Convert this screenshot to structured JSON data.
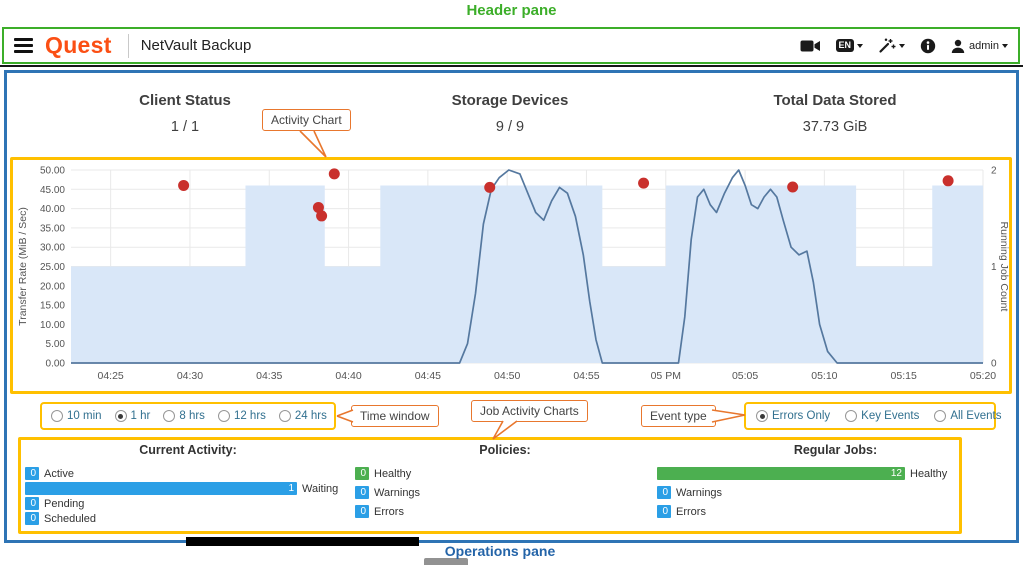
{
  "annotations": {
    "header_pane": "Header pane",
    "activity_chart": "Activity Chart",
    "time_window": "Time window",
    "job_activity_charts": "Job Activity Charts",
    "event_type": "Event type",
    "operations_pane": "Operations pane"
  },
  "colors": {
    "annotation_green": "#3cae29",
    "annotation_blue": "#2e74b5",
    "annotation_yellow": "#ffc000",
    "annotation_orange": "#e8772e",
    "brand_orange": "#fb4f14",
    "status_blue": "#2b9fe6",
    "status_green": "#4caf50"
  },
  "header": {
    "brand": "Quest",
    "app_title": "NetVault Backup",
    "language_badge": "EN",
    "user_label": "admin"
  },
  "stats": [
    {
      "title": "Client Status",
      "value": "1 / 1"
    },
    {
      "title": "Storage Devices",
      "value": "9 / 9"
    },
    {
      "title": "Total Data Stored",
      "value": "37.73 GiB"
    }
  ],
  "time_window": {
    "options": [
      {
        "label": "10 min",
        "selected": false
      },
      {
        "label": "1 hr",
        "selected": true
      },
      {
        "label": "8 hrs",
        "selected": false
      },
      {
        "label": "12 hrs",
        "selected": false
      },
      {
        "label": "24 hrs",
        "selected": false
      }
    ]
  },
  "event_type": {
    "options": [
      {
        "label": "Errors Only",
        "selected": true
      },
      {
        "label": "Key Events",
        "selected": false
      },
      {
        "label": "All Events",
        "selected": false
      }
    ]
  },
  "operations": {
    "columns": [
      {
        "title": "Current Activity:",
        "rows": [
          {
            "count": "0",
            "label": "Active",
            "color": "#2b9fe6"
          },
          {
            "count": "1",
            "label": "Waiting",
            "color": "#2b9fe6"
          },
          {
            "count": "0",
            "label": "Pending",
            "color": "#2b9fe6"
          },
          {
            "count": "0",
            "label": "Scheduled",
            "color": "#2b9fe6"
          }
        ]
      },
      {
        "title": "Policies:",
        "rows": [
          {
            "count": "0",
            "label": "Healthy",
            "color": "#4caf50"
          },
          {
            "count": "0",
            "label": "Warnings",
            "color": "#2b9fe6"
          },
          {
            "count": "0",
            "label": "Errors",
            "color": "#2b9fe6"
          }
        ]
      },
      {
        "title": "Regular Jobs:",
        "rows": [
          {
            "count": "12",
            "label": "Healthy",
            "color": "#4caf50"
          },
          {
            "count": "0",
            "label": "Warnings",
            "color": "#2b9fe6"
          },
          {
            "count": "0",
            "label": "Errors",
            "color": "#2b9fe6"
          }
        ]
      }
    ]
  },
  "chart_data": {
    "type": "line",
    "title": "Activity Chart",
    "grid": true,
    "legend": "none",
    "x_axis": {
      "unit": "minutes after 04:20 PM",
      "domain": [
        2.5,
        60
      ],
      "ticks": [
        {
          "x": 5,
          "label": "04:25"
        },
        {
          "x": 10,
          "label": "04:30"
        },
        {
          "x": 15,
          "label": "04:35"
        },
        {
          "x": 20,
          "label": "04:40"
        },
        {
          "x": 25,
          "label": "04:45"
        },
        {
          "x": 30,
          "label": "04:50"
        },
        {
          "x": 35,
          "label": "04:55"
        },
        {
          "x": 40,
          "label": "05 PM"
        },
        {
          "x": 45,
          "label": "05:05"
        },
        {
          "x": 50,
          "label": "05:10"
        },
        {
          "x": 55,
          "label": "05:15"
        },
        {
          "x": 60,
          "label": "05:20"
        }
      ]
    },
    "y_left": {
      "label": "Transfer Rate (MiB / Sec)",
      "min": 0,
      "max": 50,
      "tick_labels": [
        "50.00",
        "45.00",
        "40.00",
        "35.00",
        "30.00",
        "25.00",
        "20.00",
        "15.00",
        "10.00",
        "5.00",
        "0.00"
      ]
    },
    "y_right": {
      "label": "Running Job Count",
      "min": 0,
      "max": 2,
      "tick_labels": [
        "2",
        "1",
        "0"
      ]
    },
    "series": [
      {
        "name": "Running Job Count",
        "type": "step-area",
        "axis": "right",
        "points": [
          [
            2.5,
            1
          ],
          [
            13.5,
            2
          ],
          [
            18.5,
            1
          ],
          [
            22,
            2
          ],
          [
            36,
            1
          ],
          [
            40,
            2
          ],
          [
            52,
            1
          ],
          [
            56.8,
            2
          ]
        ]
      },
      {
        "name": "Transfer Rate",
        "type": "line",
        "axis": "left",
        "points": [
          [
            2.5,
            0
          ],
          [
            27,
            0
          ],
          [
            27.5,
            5
          ],
          [
            28,
            18
          ],
          [
            28.5,
            36
          ],
          [
            29,
            45
          ],
          [
            29.5,
            48
          ],
          [
            30.1,
            50
          ],
          [
            30.8,
            49
          ],
          [
            31.3,
            44
          ],
          [
            31.8,
            39
          ],
          [
            32.3,
            37
          ],
          [
            32.8,
            42
          ],
          [
            33.3,
            45.5
          ],
          [
            33.8,
            44
          ],
          [
            34.3,
            38
          ],
          [
            34.8,
            28
          ],
          [
            35.2,
            16
          ],
          [
            35.6,
            6
          ],
          [
            36,
            0
          ],
          [
            40.8,
            0
          ],
          [
            41.2,
            12
          ],
          [
            41.6,
            32
          ],
          [
            42,
            43
          ],
          [
            42.4,
            45
          ],
          [
            42.8,
            41
          ],
          [
            43.2,
            39
          ],
          [
            43.7,
            44
          ],
          [
            44.2,
            48
          ],
          [
            44.6,
            50
          ],
          [
            45,
            46
          ],
          [
            45.4,
            41
          ],
          [
            45.8,
            40
          ],
          [
            46.2,
            43
          ],
          [
            46.6,
            45
          ],
          [
            47,
            43
          ],
          [
            47.4,
            37
          ],
          [
            47.9,
            30
          ],
          [
            48.4,
            28
          ],
          [
            48.9,
            29
          ],
          [
            49.3,
            21
          ],
          [
            49.7,
            10
          ],
          [
            50.2,
            3
          ],
          [
            50.8,
            0
          ],
          [
            60,
            0
          ]
        ]
      },
      {
        "name": "Error Events",
        "type": "scatter",
        "axis": "left",
        "points": [
          [
            9.6,
            46
          ],
          [
            18.1,
            40.3
          ],
          [
            18.3,
            38.1
          ],
          [
            19.1,
            49
          ],
          [
            28.9,
            45.5
          ],
          [
            38.6,
            46.6
          ],
          [
            48,
            45.6
          ],
          [
            57.8,
            47.2
          ]
        ]
      }
    ],
    "colors": {
      "line": "#55789f",
      "area": "#d9e7f8",
      "event_dot": "#c9302c",
      "grid": "#e9e9e9"
    }
  }
}
